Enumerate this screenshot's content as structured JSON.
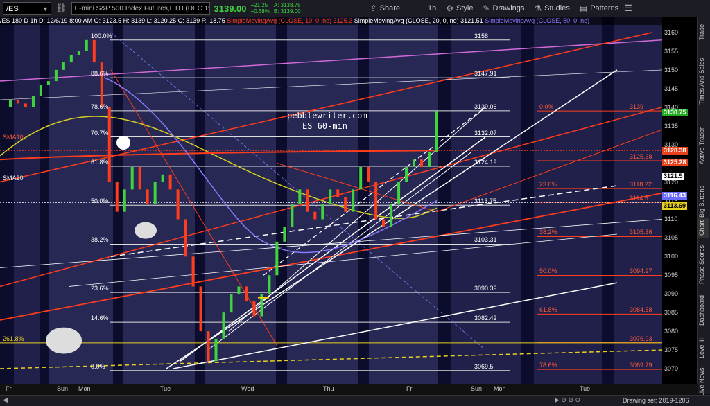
{
  "toolbar": {
    "symbol": "/ES",
    "instrument": "E-mini S&P 500 Index Futures,ETH (DEC 19)",
    "last_price": "3139.00",
    "change": "+21.25",
    "change_pct": "+0.68%",
    "bid": "A: 3138.75",
    "ask": "B: 3139.00",
    "share": "Share",
    "timeframe": "1h",
    "style": "Style",
    "drawings": "Drawings",
    "studies": "Studies",
    "patterns": "Patterns"
  },
  "legend": {
    "ohlc": "/ES 180 D 1h   D: 12/6/19 8:00 AM   O: 3123.5   H: 3139   L: 3120.25   C: 3139   R: 18.75",
    "sma10": "SimpleMovingAvg (CLOSE, 10, 0, no)",
    "sma10_val": "3125.3",
    "sma20": "SimpleMovingAvg (CLOSE, 20, 0, no)",
    "sma20_val": "3121.51",
    "sma50": "SimpleMovingAvg (CLOSE, 50, 0, no)"
  },
  "right_tabs": [
    "Trade",
    "Times And Sales",
    "Active Trader",
    "Big Buttons",
    "Chart",
    "Phase Scores",
    "Dashboard",
    "Level II",
    "Live News"
  ],
  "axis": {
    "ticks": [
      3160,
      3155,
      3150,
      3145,
      3140,
      3135,
      3130,
      3125,
      3120,
      3115,
      3110,
      3105,
      3100,
      3095,
      3090,
      3085,
      3080,
      3075,
      3070
    ],
    "badges": [
      {
        "label": "3138.75",
        "price": 3138.75,
        "color": "#22aa22",
        "text": "#fff"
      },
      {
        "label": "3128.38",
        "price": 3128.38,
        "color": "#e8401c",
        "text": "#fff"
      },
      {
        "label": "3125.28",
        "price": 3125.28,
        "color": "#e8401c",
        "text": "#fff"
      },
      {
        "label": "3121.5",
        "price": 3121.5,
        "color": "#ffffff",
        "text": "#000"
      },
      {
        "label": "3116.43",
        "price": 3116.43,
        "color": "#6a6aff",
        "text": "#fff"
      },
      {
        "label": "3113.69",
        "price": 3113.69,
        "color": "#e8d020",
        "text": "#000"
      }
    ]
  },
  "fib_left": [
    {
      "pct": "100.0%",
      "price": 3158,
      "label": "3158"
    },
    {
      "pct": "88.6%",
      "price": 3147.91,
      "label": "3147.91"
    },
    {
      "pct": "78.6%",
      "price": 3139.06,
      "label": "3139.06"
    },
    {
      "pct": "70.7%",
      "price": 3132.07,
      "label": "3132.07"
    },
    {
      "pct": "61.8%",
      "price": 3124.19,
      "label": "3124.19"
    },
    {
      "pct": "50.0%",
      "price": 3113.75,
      "label": "3113.75"
    },
    {
      "pct": "38.2%",
      "price": 3103.31,
      "label": "3103.31"
    },
    {
      "pct": "23.6%",
      "price": 3090.39,
      "label": "3090.39"
    },
    {
      "pct": "14.6%",
      "price": 3082.42,
      "label": "3082.42"
    },
    {
      "pct": "0.0%",
      "price": 3069.5,
      "label": "3069.5"
    }
  ],
  "fib_right": [
    {
      "pct": "0.0%",
      "price": 3139,
      "label": "3139"
    },
    {
      "pct": "",
      "price": 3125.68,
      "label": "3125.68"
    },
    {
      "pct": "23.6%",
      "price": 3118.22,
      "label": "3118.22"
    },
    {
      "pct": "",
      "price": 3114.51,
      "label": "3114.51"
    },
    {
      "pct": "38.2%",
      "price": 3105.36,
      "label": "3105.36"
    },
    {
      "pct": "50.0%",
      "price": 3094.97,
      "label": "3094.97"
    },
    {
      "pct": "61.8%",
      "price": 3084.58,
      "label": "3084.58"
    },
    {
      "pct": "",
      "price": 3076.93,
      "label": "3076.93"
    },
    {
      "pct": "78.6%",
      "price": 3069.79,
      "label": "3069.79"
    }
  ],
  "side_labels": {
    "sma10": "SMA10",
    "sma20": "SMA20",
    "ext": "261.8%"
  },
  "annotation": {
    "line1": "pebblewriter.com",
    "line2": "ES 60-min"
  },
  "days": [
    {
      "label": "Fri",
      "x": 8
    },
    {
      "label": "Sun",
      "x": 82
    },
    {
      "label": "Mon",
      "x": 113
    },
    {
      "label": "Tue",
      "x": 231
    },
    {
      "label": "Wed",
      "x": 348
    },
    {
      "label": "Thu",
      "x": 466
    },
    {
      "label": "Fri",
      "x": 586
    },
    {
      "label": "Sun",
      "x": 679
    },
    {
      "label": "Mon",
      "x": 712
    },
    {
      "label": "Tue",
      "x": 836
    }
  ],
  "footer": {
    "drawing_set": "Drawing set: 2019-1206"
  },
  "colors": {
    "up": "#3fd43f",
    "down": "#ff3c1c",
    "sma10": "#ff3c1c",
    "sma20": "#8a7cff",
    "sma50": "#d6d020",
    "magenta": "#d06ad8"
  }
}
